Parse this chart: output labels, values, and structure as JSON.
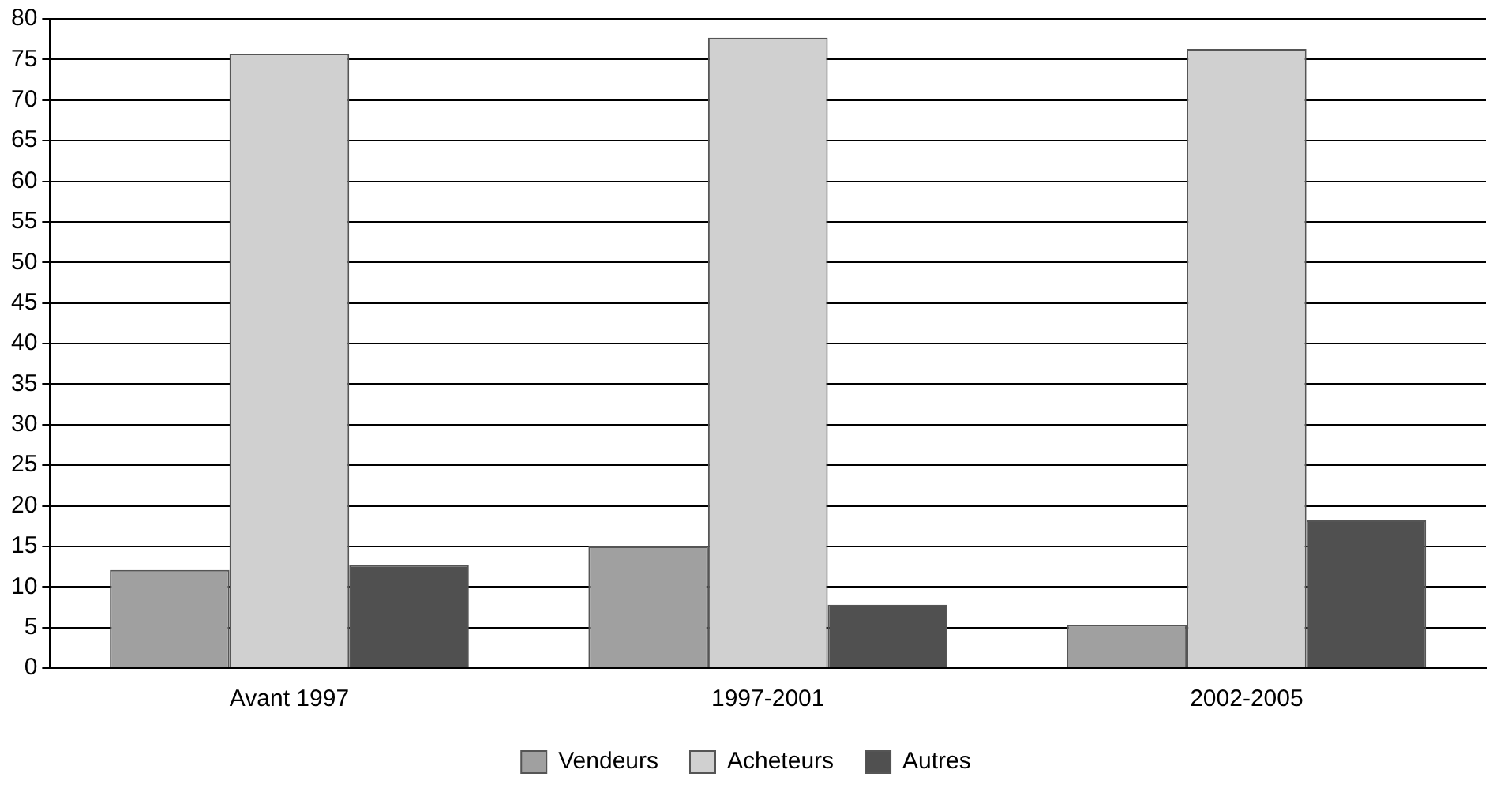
{
  "chart_data": {
    "type": "bar",
    "categories": [
      "Avant 1997",
      "1997-2001",
      "2002-2005"
    ],
    "series": [
      {
        "name": "Vendeurs",
        "color": "#a0a0a0",
        "values": [
          12.1,
          15,
          5.3
        ]
      },
      {
        "name": "Acheteurs",
        "color": "#d0d0d0",
        "values": [
          75.7,
          77.7,
          76.3
        ]
      },
      {
        "name": "Autres",
        "color": "#505050",
        "values": [
          12.7,
          7.8,
          18.2
        ]
      }
    ],
    "ylim": [
      0,
      80
    ],
    "yticks": [
      0,
      5,
      10,
      15,
      20,
      25,
      30,
      35,
      40,
      45,
      50,
      55,
      60,
      65,
      70,
      75,
      80
    ],
    "grid": "y",
    "legend": "bottom"
  }
}
